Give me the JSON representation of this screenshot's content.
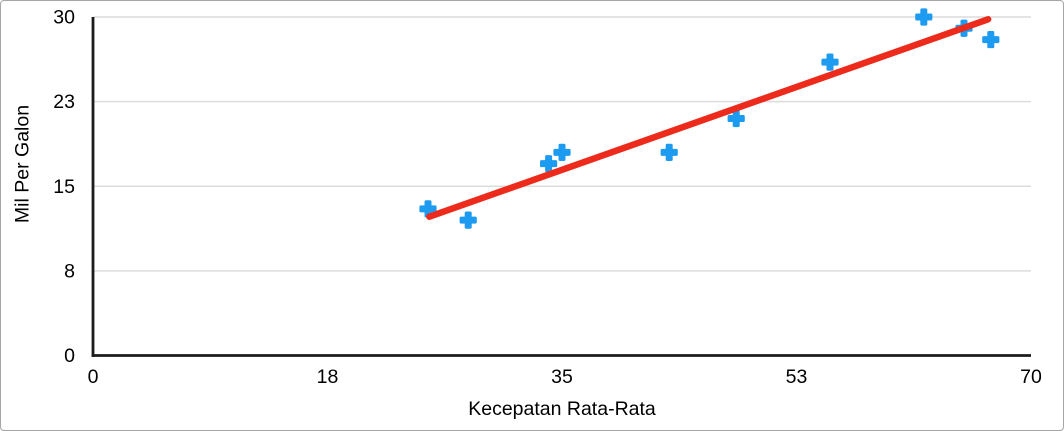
{
  "chart_data": {
    "type": "scatter",
    "title": "",
    "xlabel": "Kecepatan Rata-Rata",
    "ylabel": "Mil Per Galon",
    "xlim": [
      0,
      70
    ],
    "ylim": [
      0,
      30
    ],
    "x_ticks": [
      0,
      17.5,
      35,
      52.5,
      70
    ],
    "x_tick_labels": [
      "0",
      "18",
      "35",
      "53",
      "70"
    ],
    "y_ticks": [
      0,
      7.5,
      15,
      22.5,
      30
    ],
    "y_tick_labels": [
      "0",
      "8",
      "15",
      "23",
      "30"
    ],
    "grid": "horizontal",
    "legend": "none",
    "series": [
      {
        "name": "Mil Per Galon",
        "marker": "plus",
        "points": [
          [
            25,
            13
          ],
          [
            28,
            12
          ],
          [
            34,
            17
          ],
          [
            35,
            18
          ],
          [
            43,
            18
          ],
          [
            48,
            21
          ],
          [
            55,
            26
          ],
          [
            62,
            30
          ],
          [
            65,
            29
          ],
          [
            67,
            28
          ]
        ]
      }
    ],
    "trendline": {
      "x1": 25.1,
      "y1": 12.3,
      "x2": 66.8,
      "y2": 29.8
    },
    "colors": {
      "marker": "#1C9BF0",
      "trendline": "#EC2B1C",
      "axis": "#1C1C1C",
      "gridline": "#DCDCDC",
      "text": "#000000",
      "frame_border": "#A6A6A6",
      "background": "#FFFFFF"
    }
  }
}
